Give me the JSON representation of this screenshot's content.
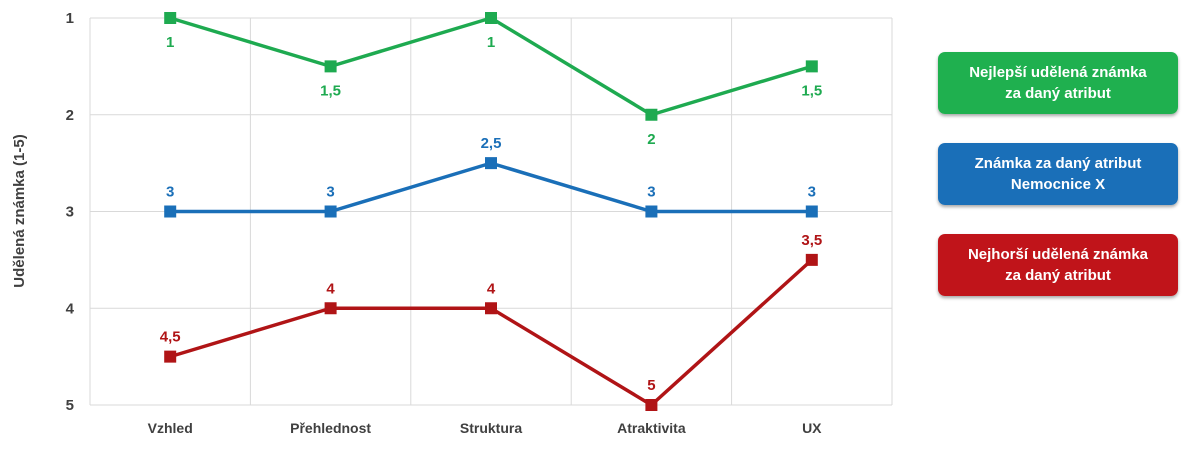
{
  "chart_data": {
    "type": "line",
    "ylabel": "Udělená známka (1-5)",
    "xlabel": "",
    "categories": [
      "Vzhled",
      "Přehlednost",
      "Struktura",
      "Atraktivita",
      "UX"
    ],
    "ylim": [
      1,
      5
    ],
    "y_inverted": true,
    "y_ticks": [
      "1",
      "2",
      "3",
      "4",
      "5"
    ],
    "grid": true,
    "legend_placement": "right",
    "series": [
      {
        "name": "Nejlepší udělená známka za daný atribut",
        "color": "#1eaa50",
        "values": [
          1,
          1.5,
          1,
          2,
          1.5
        ],
        "labels": [
          "1",
          "1,5",
          "1",
          "2",
          "1,5"
        ],
        "label_position": "below"
      },
      {
        "name": "Známka za daný atribut Nemocnice X",
        "color": "#1a6fb8",
        "values": [
          3,
          3,
          2.5,
          3,
          3
        ],
        "labels": [
          "3",
          "3",
          "2,5",
          "3",
          "3"
        ],
        "label_position": "above"
      },
      {
        "name": "Nejhorší udělená známka za daný atribut",
        "color": "#b01416",
        "values": [
          4.5,
          4,
          4,
          5,
          3.5
        ],
        "labels": [
          "4,5",
          "4",
          "4",
          "5",
          "3,5"
        ],
        "label_position": "above"
      }
    ]
  },
  "legend": [
    {
      "text": "Nejlepší udělená známka\nza daný atribut",
      "bg": "#1fb04f"
    },
    {
      "text": "Známka za daný atribut\nNemocnice X",
      "bg": "#1a6fb8"
    },
    {
      "text": "Nejhorší udělená známka\nza daný atribut",
      "bg": "#c0141a"
    }
  ]
}
